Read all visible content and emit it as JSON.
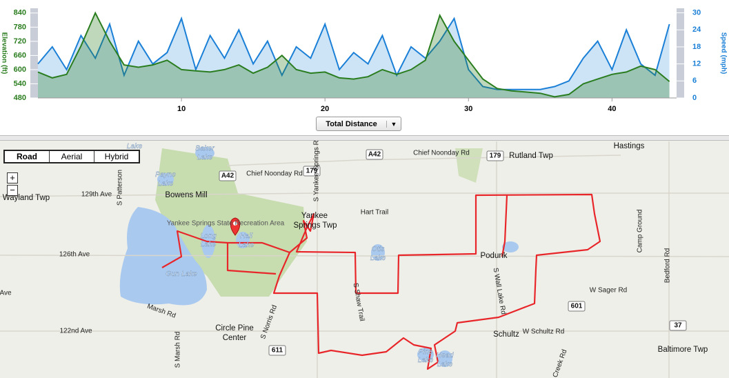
{
  "chart_data": {
    "type": "area",
    "ylabel": "Elevation (ft)",
    "y2label": "Speed (mph)",
    "x": [
      0,
      1,
      2,
      3,
      4,
      5,
      6,
      7,
      8,
      9,
      10,
      11,
      12,
      13,
      14,
      15,
      16,
      17,
      18,
      19,
      20,
      21,
      22,
      23,
      24,
      25,
      26,
      27,
      28,
      29,
      30,
      31,
      32,
      33,
      34,
      35,
      36,
      37,
      38,
      39,
      40,
      41,
      42,
      43,
      44
    ],
    "series": [
      {
        "color": "#2a7d1e",
        "axis": "y",
        "values": [
          590,
          565,
          580,
          700,
          840,
          720,
          620,
          610,
          620,
          640,
          600,
          595,
          590,
          600,
          620,
          585,
          610,
          660,
          600,
          585,
          590,
          565,
          560,
          570,
          600,
          580,
          600,
          640,
          830,
          720,
          640,
          560,
          520,
          510,
          505,
          500,
          485,
          495,
          540,
          560,
          580,
          590,
          615,
          600,
          550
        ]
      },
      {
        "color": "#1a7fd6",
        "axis": "y2",
        "values": [
          12,
          18,
          10,
          22,
          14,
          26,
          8,
          20,
          12,
          16,
          28,
          10,
          22,
          14,
          24,
          12,
          20,
          8,
          18,
          14,
          26,
          10,
          16,
          12,
          22,
          8,
          18,
          14,
          20,
          28,
          10,
          4,
          3,
          3,
          3,
          3,
          4,
          6,
          14,
          20,
          10,
          24,
          12,
          8,
          26
        ]
      }
    ],
    "xlim": [
      0,
      44.5
    ],
    "xticks": [
      10,
      20,
      30,
      40
    ],
    "ylim": [
      480,
      860
    ],
    "yticks": [
      480,
      540,
      600,
      660,
      720,
      780,
      840
    ],
    "y2lim": [
      0,
      31.6
    ],
    "y2ticks": [
      0,
      6,
      12,
      18,
      24,
      30
    ]
  },
  "controls": {
    "x_selector": "Total Distance",
    "map_types": [
      "Road",
      "Aerial",
      "Hybrid"
    ],
    "zoom": [
      "+",
      "−"
    ]
  },
  "map": {
    "labels": [
      "Lake",
      "Baker",
      "Lake",
      "Payne",
      "Lake",
      "A42",
      "Chief Noonday Rd",
      "179",
      "S Yankee Springs Rd",
      "A42",
      "Chief Noonday Rd",
      "179",
      "Rutland Twp",
      "Hastings",
      "Wayland Twp",
      "129th Ave",
      "S Patterson",
      "Bowens Mill",
      "Yankee Springs State Recreation Area",
      "Long",
      "Lake",
      "Hall",
      "Lake",
      "Yankee",
      "Springs Twp",
      "Hart Trail",
      "Otis",
      "Lake",
      "Podunk",
      "126th Ave",
      "Gun Lake",
      "S Wall Lake Rd",
      "Camp Ground",
      "Bedford Rd",
      "W Sager Rd",
      "601",
      "Ave",
      "Marsh Rd",
      "S Norris Rd",
      "S Shaw Trail",
      "Circle Pine",
      "Center",
      "122nd Ave",
      "S Marsh Rd",
      "611",
      "Schultz",
      "W Schultz Rd",
      "37",
      "Baltimore Twp",
      "Pine",
      "Lake",
      "Head",
      "Lake",
      "Creek Rd"
    ]
  }
}
